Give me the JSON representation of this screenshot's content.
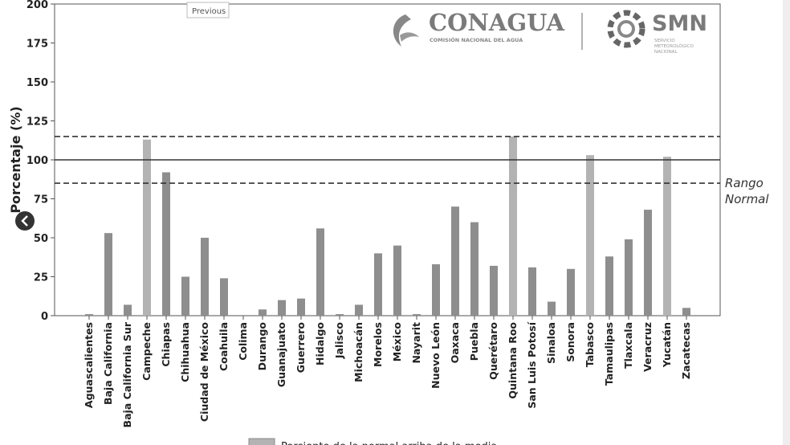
{
  "chart_data": {
    "type": "bar",
    "ylabel": "Porcentaje (%)",
    "categories": [
      "Aguascalientes",
      "Baja California",
      "Baja California Sur",
      "Campeche",
      "Chiapas",
      "Chihuahua",
      "Ciudad de México",
      "Coahuila",
      "Colima",
      "Durango",
      "Guanajuato",
      "Guerrero",
      "Hidalgo",
      "Jalisco",
      "Michoacán",
      "Morelos",
      "México",
      "Nayarit",
      "Nuevo León",
      "Oaxaca",
      "Puebla",
      "Querétaro",
      "Quintana Roo",
      "San Luis Potosí",
      "Sinaloa",
      "Sonora",
      "Tabasco",
      "Tamaulipas",
      "Tlaxcala",
      "Veracruz",
      "Yucatán",
      "Zacatecas"
    ],
    "values": [
      1,
      53,
      7,
      113,
      92,
      25,
      50,
      24,
      0,
      4,
      10,
      11,
      56,
      1,
      7,
      40,
      45,
      1,
      33,
      70,
      60,
      32,
      115,
      31,
      9,
      30,
      103,
      38,
      49,
      68,
      102,
      5
    ],
    "colors": [
      "#8e8e8e",
      "#8e8e8e",
      "#8e8e8e",
      "#b3b3b3",
      "#8e8e8e",
      "#8e8e8e",
      "#8e8e8e",
      "#8e8e8e",
      "#8e8e8e",
      "#8e8e8e",
      "#8e8e8e",
      "#8e8e8e",
      "#8e8e8e",
      "#8e8e8e",
      "#8e8e8e",
      "#8e8e8e",
      "#8e8e8e",
      "#8e8e8e",
      "#8e8e8e",
      "#8e8e8e",
      "#8e8e8e",
      "#8e8e8e",
      "#b3b3b3",
      "#8e8e8e",
      "#8e8e8e",
      "#8e8e8e",
      "#b3b3b3",
      "#8e8e8e",
      "#8e8e8e",
      "#8e8e8e",
      "#b3b3b3",
      "#8e8e8e"
    ],
    "ylim": [
      0,
      200
    ],
    "yticks": [
      0,
      25,
      50,
      75,
      100,
      125,
      150,
      175,
      200
    ],
    "reference_lines": [
      {
        "value": 115,
        "style": "dashed"
      },
      {
        "value": 100,
        "style": "solid"
      },
      {
        "value": 85,
        "style": "dashed"
      }
    ],
    "annotation": [
      "Rango",
      "Normal"
    ],
    "legend": {
      "label": "Porciento de la normal arriba de la media",
      "color": "#b3b3b3"
    }
  },
  "logos": {
    "conagua": "CONAGUA",
    "conagua_sub": "COMISIÓN NACIONAL DEL AGUA",
    "smn": "SMN",
    "smn_sub": [
      "SERVICIO",
      "METEOROLÓGICO",
      "NACIONAL"
    ]
  },
  "tooltip": "Previous"
}
